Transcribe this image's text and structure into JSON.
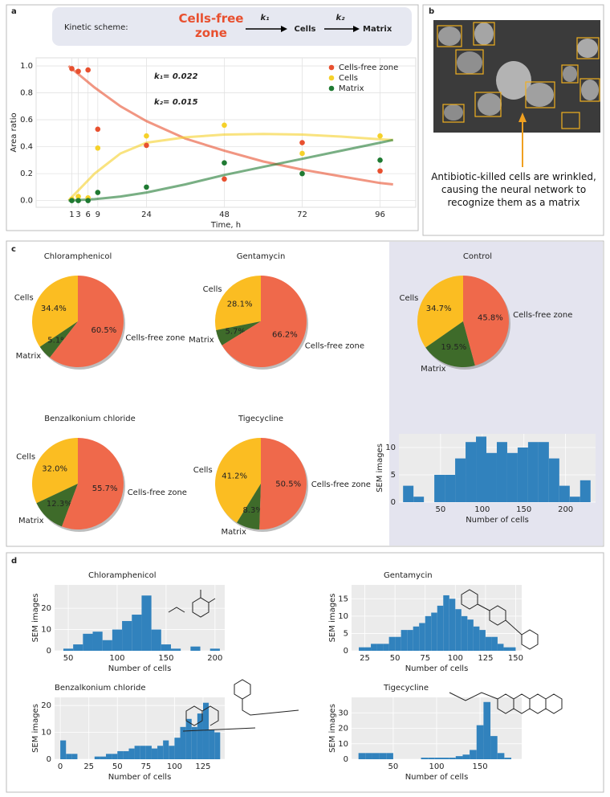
{
  "panel_labels": [
    "a",
    "b",
    "c",
    "d"
  ],
  "scheme": {
    "title": "Kinetic scheme:",
    "states": [
      "Cells-free zone",
      "Cells",
      "Matrix"
    ],
    "rates": [
      "k₁",
      "k₂"
    ],
    "colors": [
      "#e8502f",
      "#f5d12a",
      "#2a8a3a"
    ]
  },
  "panel_b": {
    "caption": "Antibiotic-killed cells are wrinkled, causing the neural network to recognize them as a matrix"
  },
  "chart_data": [
    {
      "type": "scatter",
      "xlabel": "Time, h",
      "ylabel": "Area ratio",
      "x": [
        1,
        3,
        6,
        9,
        24,
        48,
        72,
        96
      ],
      "xlim": [
        -10,
        107
      ],
      "xticks": [
        1,
        3,
        6,
        9,
        24,
        48,
        72,
        96
      ],
      "ylim": [
        -0.05,
        1.06
      ],
      "yticks": [
        {
          "value": 0,
          "label": "0.0"
        },
        0.2,
        0.4,
        0.6,
        0.8,
        {
          "value": 1,
          "label": "1.0"
        }
      ],
      "grid": true,
      "legend": "upper right",
      "annotations": [
        "k₁= 0.022",
        "k₂= 0.015"
      ],
      "fit_x": [
        0,
        8,
        16,
        24,
        36,
        48,
        60,
        72,
        84,
        96,
        100
      ],
      "series": [
        {
          "name": "Cells-free zone",
          "color": "#e8502f",
          "values": [
            0.98,
            0.96,
            0.97,
            0.53,
            0.41,
            0.16,
            0.43,
            0.22
          ],
          "fit": [
            1.0,
            0.84,
            0.7,
            0.59,
            0.46,
            0.37,
            0.29,
            0.23,
            0.18,
            0.13,
            0.12
          ]
        },
        {
          "name": "Cells",
          "color": "#f5d12a",
          "values": [
            0.01,
            0.03,
            0.02,
            0.39,
            0.48,
            0.56,
            0.35,
            0.48
          ],
          "fit": [
            0,
            0.2,
            0.35,
            0.43,
            0.47,
            0.49,
            0.495,
            0.49,
            0.475,
            0.455,
            0.45
          ]
        },
        {
          "name": "Matrix",
          "color": "#1f7a32",
          "values": [
            0.0,
            0.0,
            0.0,
            0.06,
            0.1,
            0.28,
            0.2,
            0.3
          ],
          "fit": [
            0,
            0.01,
            0.03,
            0.06,
            0.12,
            0.19,
            0.25,
            0.31,
            0.37,
            0.43,
            0.45
          ]
        }
      ]
    },
    {
      "type": "pie",
      "title": "Chloramphenicol",
      "categories": [
        "Cells",
        "Matrix",
        "Cells-free zone"
      ],
      "values": [
        34.4,
        5.1,
        60.5
      ],
      "value_labels": [
        "34.4%",
        "5.1%",
        "60.5%"
      ],
      "colors": [
        "#fbbd22",
        "#3e6b2a",
        "#ef694b"
      ]
    },
    {
      "type": "pie",
      "title": "Gentamycin",
      "categories": [
        "Cells",
        "Matrix",
        "Cells-free zone"
      ],
      "values": [
        28.1,
        5.7,
        66.2
      ],
      "value_labels": [
        "28.1%",
        "5.7%",
        "66.2%"
      ],
      "colors": [
        "#fbbd22",
        "#3e6b2a",
        "#ef694b"
      ]
    },
    {
      "type": "pie",
      "title": "Control",
      "categories": [
        "Cells",
        "Matrix",
        "Cells-free zone"
      ],
      "values": [
        34.7,
        19.5,
        45.8
      ],
      "value_labels": [
        "34.7%",
        "19.5%",
        "45.8%"
      ],
      "colors": [
        "#fbbd22",
        "#3e6b2a",
        "#ef694b"
      ]
    },
    {
      "type": "pie",
      "title": "Benzalkonium chloride",
      "categories": [
        "Cells",
        "Matrix",
        "Cells-free zone"
      ],
      "values": [
        32.0,
        12.3,
        55.7
      ],
      "value_labels": [
        "32.0%",
        "12.3%",
        "55.7%"
      ],
      "colors": [
        "#fbbd22",
        "#3e6b2a",
        "#ef694b"
      ]
    },
    {
      "type": "pie",
      "title": "Tigecycline",
      "categories": [
        "Cells",
        "Matrix",
        "Cells-free zone"
      ],
      "values": [
        41.2,
        8.3,
        50.5
      ],
      "value_labels": [
        "41.2%",
        "8.3%",
        "50.5%"
      ],
      "colors": [
        "#fbbd22",
        "#3e6b2a",
        "#ef694b"
      ]
    },
    {
      "type": "histogram",
      "xlabel": "Number of cells",
      "ylabel": "SEM images",
      "bins": [
        5,
        17.5,
        30,
        42.5,
        55,
        67.5,
        80,
        92.5,
        105,
        117.5,
        130,
        142.5,
        155,
        167.5,
        180,
        192.5,
        205,
        217.5,
        230
      ],
      "values": [
        3,
        1,
        0,
        5,
        5,
        8,
        11,
        12,
        9,
        11,
        9,
        10,
        11,
        11,
        8,
        3,
        1,
        4
      ],
      "xlim": [
        0,
        236
      ],
      "ylim": [
        0,
        12.5
      ],
      "xticks": [
        50,
        100,
        150,
        200
      ],
      "yticks": [
        0,
        5,
        10
      ],
      "grid": true,
      "color": "#3182bd"
    },
    {
      "type": "histogram",
      "title": "Chloramphenicol",
      "xlabel": "Number of cells",
      "ylabel": "SEM images",
      "bins": [
        45,
        55,
        65,
        75,
        85,
        95,
        105,
        115,
        125,
        135,
        145,
        155,
        165,
        175,
        185,
        195,
        205
      ],
      "values": [
        1,
        3,
        8,
        9,
        5,
        10,
        14,
        17,
        26,
        10,
        3,
        1,
        0,
        2,
        0,
        1
      ],
      "xlim": [
        36,
        210
      ],
      "ylim": [
        0,
        31
      ],
      "xticks": [
        50,
        100,
        150,
        200
      ],
      "yticks": [
        0,
        10,
        20
      ],
      "grid": true,
      "color": "#3182bd"
    },
    {
      "type": "histogram",
      "title": "Gentamycin",
      "xlabel": "Number of cells",
      "ylabel": "SEM images",
      "bins": [
        20,
        25,
        30,
        35,
        40,
        45,
        50,
        55,
        60,
        65,
        70,
        75,
        80,
        85,
        90,
        95,
        100,
        105,
        110,
        115,
        120,
        125,
        130,
        135,
        140,
        145,
        150
      ],
      "values": [
        1,
        1,
        2,
        2,
        2,
        4,
        4,
        6,
        6,
        7,
        8,
        10,
        11,
        13,
        16,
        15,
        12,
        10,
        9,
        7,
        6,
        4,
        4,
        2,
        1,
        1
      ],
      "xlim": [
        14,
        155
      ],
      "ylim": [
        0,
        19
      ],
      "xticks": [
        25,
        50,
        75,
        100,
        125,
        150
      ],
      "yticks": [
        0,
        5,
        10,
        15
      ],
      "grid": true,
      "color": "#3182bd"
    },
    {
      "type": "histogram",
      "title": "Benzalkonium chloride",
      "xlabel": "Number of cells",
      "ylabel": "SEM images",
      "bins": [
        0,
        5,
        10,
        15,
        20,
        25,
        30,
        35,
        40,
        45,
        50,
        55,
        60,
        65,
        70,
        75,
        80,
        85,
        90,
        95,
        100,
        105,
        110,
        115,
        120,
        125,
        130,
        135,
        140
      ],
      "values": [
        7,
        2,
        2,
        0,
        0,
        0,
        1,
        1,
        2,
        2,
        3,
        3,
        4,
        5,
        5,
        5,
        4,
        5,
        7,
        5,
        8,
        12,
        15,
        12,
        17,
        21,
        11,
        10
      ],
      "xlim": [
        -5,
        144
      ],
      "ylim": [
        0,
        23
      ],
      "xticks": [
        0,
        25,
        50,
        75,
        100,
        125
      ],
      "yticks": [
        0,
        10,
        20
      ],
      "grid": true,
      "color": "#3182bd"
    },
    {
      "type": "histogram",
      "title": "Tigecycline",
      "xlabel": "Number of cells",
      "ylabel": "SEM images",
      "bins": [
        10,
        18,
        26,
        34,
        42,
        50,
        58,
        66,
        74,
        82,
        90,
        98,
        106,
        114,
        122,
        130,
        138,
        146,
        154,
        162,
        170,
        178,
        186
      ],
      "values": [
        4,
        4,
        4,
        4,
        4,
        0,
        0,
        0,
        0,
        1,
        1,
        1,
        1,
        1,
        2,
        3,
        6,
        22,
        37,
        15,
        4,
        1
      ],
      "xlim": [
        2,
        198
      ],
      "ylim": [
        0,
        40
      ],
      "xticks": [
        50,
        100,
        150
      ],
      "yticks": [
        0,
        10,
        20,
        30
      ],
      "grid": true,
      "color": "#3182bd"
    }
  ]
}
